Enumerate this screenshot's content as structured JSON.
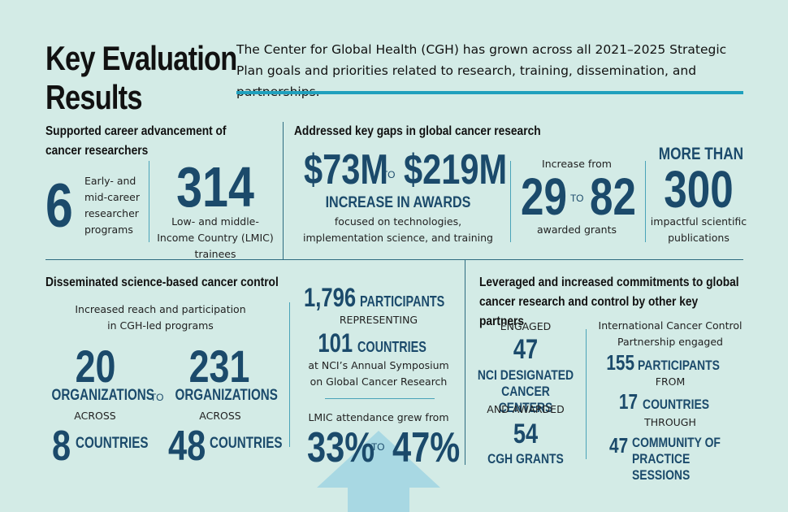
{
  "header": {
    "title_line1": "Key Evaluation",
    "title_line2": "Results",
    "intro": "The Center for Global Health (CGH) has grown across all 2021–2025 Strategic Plan goals and priorities related to research, training, dissemination, and partnerships."
  },
  "career": {
    "heading": "Supported career advancement of cancer researchers",
    "programs_number": "6",
    "programs_label": "Early- and mid-career researcher programs",
    "trainees_number": "314",
    "trainees_label": "Low- and middle- Income Country (LMIC) trainees"
  },
  "gaps": {
    "heading": "Addressed key gaps in global cancer research",
    "awards_from": "$73M",
    "awards_to_word": "TO",
    "awards_to": "$219M",
    "awards_caption": "INCREASE IN AWARDS",
    "awards_desc": "focused on technologies, implementation science, and training",
    "grants_prefix": "Increase from",
    "grants_from": "29",
    "grants_to_word": "TO",
    "grants_to": "82",
    "grants_label": "awarded grants",
    "pubs_prefix": "MORE THAN",
    "pubs_number": "300",
    "pubs_label": "impactful scientific publications"
  },
  "disseminated": {
    "heading": "Disseminated science-based cancer control",
    "reach_label": "Increased reach and participation in CGH-led programs",
    "orgs_from": "20",
    "orgs_from_unit": "ORGANIZATIONS",
    "to_word": "TO",
    "orgs_to": "231",
    "orgs_to_unit": "ORGANIZATIONS",
    "across_1": "ACROSS",
    "across_2": "ACROSS",
    "countries_from": "8",
    "countries_from_unit": "COUNTRIES",
    "countries_to": "48",
    "countries_to_unit": "COUNTRIES"
  },
  "symposium": {
    "participants_number": "1,796",
    "participants_unit": "PARTICIPANTS",
    "representing": "REPRESENTING",
    "countries_number": "101",
    "countries_unit": "COUNTRIES",
    "desc": "at NCI’s Annual Symposium on Global Cancer Research",
    "lmic_label": "LMIC attendance grew from",
    "lmic_from": "33%",
    "lmic_to_word": "TO",
    "lmic_to": "47%"
  },
  "partners": {
    "heading": "Leveraged and increased commitments to global cancer research and control by other key partners",
    "engaged": "ENGAGED",
    "centers_number": "47",
    "centers_label": "NCI DESIGNATED CANCER CENTERS",
    "and_awarded": "AND AWARDED",
    "grants_number": "54",
    "grants_label": "CGH GRANTS",
    "iccp_label": "International Cancer Control Partnership engaged",
    "iccp_participants_number": "155",
    "iccp_participants_unit": "PARTICIPANTS",
    "from_word": "FROM",
    "iccp_countries_number": "17",
    "iccp_countries_unit": "COUNTRIES",
    "through_word": "THROUGH",
    "sessions_number": "47",
    "sessions_label": "COMMUNITY OF PRACTICE SESSIONS"
  },
  "colors": {
    "background": "#d3ebe6",
    "navy": "#1b4a6b",
    "teal_rule": "#1fa0bd",
    "arrow": "#a8d8e3"
  }
}
